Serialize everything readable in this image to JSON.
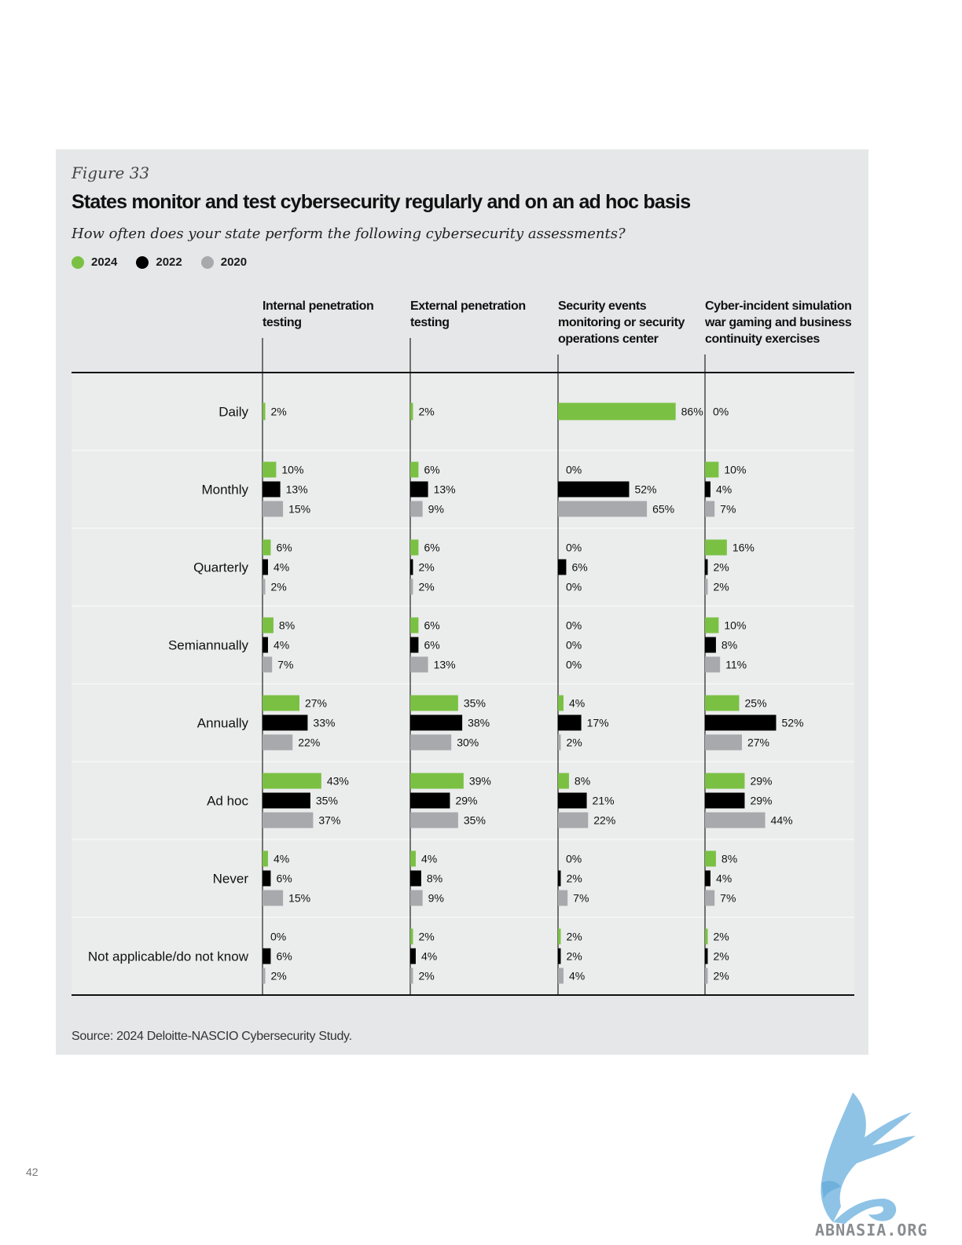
{
  "figure_label": "Figure 33",
  "title": "States monitor and test cybersecurity regularly and on an ad hoc  basis",
  "subtitle": "How often does your state perform the following cybersecurity assessments?",
  "source": "Source: 2024 Deloitte-NASCIO Cybersecurity Study.",
  "page_number": "42",
  "watermark": "ABNASIA.ORG",
  "colors": {
    "2024": "#7ac143",
    "2022": "#000000",
    "2020": "#a7a9ac",
    "panel": "#e6e7e8"
  },
  "chart_data": {
    "type": "bar",
    "orientation": "horizontal",
    "unit": "%",
    "legend": [
      "2024",
      "2022",
      "2020"
    ],
    "legend_position": "top-left",
    "columns": [
      "Internal penetration testing",
      "External penetration testing",
      "Security events monitoring or security operations center",
      "Cyber-incident simulation war gaming and business continuity exercises"
    ],
    "categories": [
      "Daily",
      "Monthly",
      "Quarterly",
      "Semiannually",
      "Annually",
      "Ad hoc",
      "Never",
      "Not applicable/do not know"
    ],
    "panels": [
      {
        "name": "Internal penetration testing",
        "rows": [
          [
            2
          ],
          [
            10,
            13,
            15
          ],
          [
            6,
            4,
            2
          ],
          [
            8,
            4,
            7
          ],
          [
            27,
            33,
            22
          ],
          [
            43,
            35,
            37
          ],
          [
            4,
            6,
            15
          ],
          [
            0,
            6,
            2
          ]
        ]
      },
      {
        "name": "External penetration testing",
        "rows": [
          [
            2
          ],
          [
            6,
            13,
            9
          ],
          [
            6,
            2,
            2
          ],
          [
            6,
            6,
            13
          ],
          [
            35,
            38,
            30
          ],
          [
            39,
            29,
            35
          ],
          [
            4,
            8,
            9
          ],
          [
            2,
            4,
            2
          ]
        ]
      },
      {
        "name": "Security events monitoring or security operations center",
        "rows": [
          [
            86
          ],
          [
            0,
            52,
            65
          ],
          [
            0,
            6,
            0
          ],
          [
            0,
            0,
            0
          ],
          [
            4,
            17,
            2
          ],
          [
            8,
            21,
            22
          ],
          [
            0,
            2,
            7
          ],
          [
            2,
            2,
            4
          ]
        ]
      },
      {
        "name": "Cyber-incident simulation war gaming and business continuity exercises",
        "rows": [
          [
            0
          ],
          [
            10,
            4,
            7
          ],
          [
            16,
            2,
            2
          ],
          [
            10,
            8,
            11
          ],
          [
            25,
            52,
            27
          ],
          [
            29,
            29,
            44
          ],
          [
            8,
            4,
            7
          ],
          [
            2,
            2,
            2
          ]
        ]
      }
    ]
  }
}
